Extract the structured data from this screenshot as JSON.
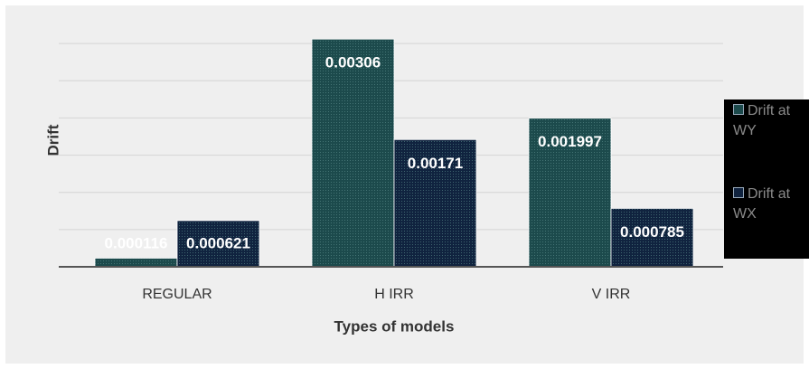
{
  "chart_data": {
    "type": "bar",
    "categories": [
      "REGULAR",
      "H IRR",
      "V IRR"
    ],
    "series": [
      {
        "name": "Drift at WY",
        "color": "#1c4a4c",
        "values": [
          0.000116,
          0.00306,
          0.001997
        ]
      },
      {
        "name": "Drift at WX",
        "color": "#10233f",
        "values": [
          0.000621,
          0.00171,
          0.000785
        ]
      }
    ],
    "xlabel": "Types of models",
    "ylabel": "Drift",
    "ylim": [
      0,
      0.0035
    ],
    "yticks": [
      0,
      0.0005,
      0.001,
      0.0015,
      0.002,
      0.0025,
      0.003
    ],
    "grid": true,
    "legend": "right"
  }
}
